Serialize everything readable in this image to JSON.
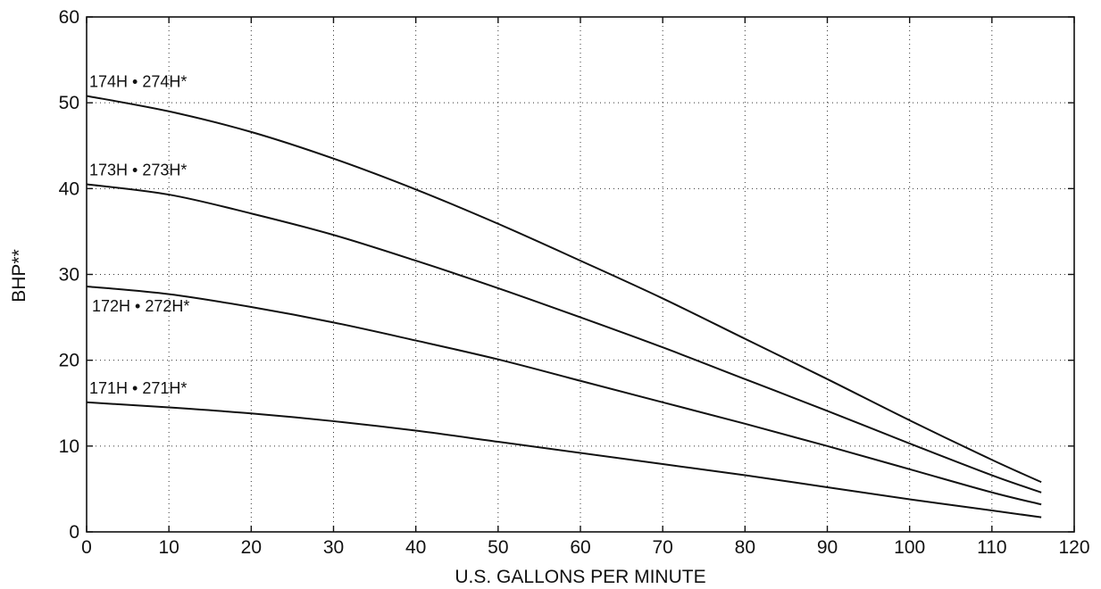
{
  "chart_data": {
    "type": "line",
    "xlabel": "U.S. GALLONS PER MINUTE",
    "ylabel": "BHP**",
    "xlim": [
      0,
      120
    ],
    "ylim": [
      0,
      60
    ],
    "x_ticks": [
      "0",
      "10",
      "20",
      "30",
      "40",
      "50",
      "60",
      "70",
      "80",
      "90",
      "100",
      "110",
      "120"
    ],
    "y_ticks": [
      "0",
      "10",
      "20",
      "30",
      "40",
      "50",
      "60"
    ],
    "grid": true,
    "series": [
      {
        "name": "174H • 274H*",
        "x": [
          0,
          10,
          20,
          30,
          40,
          50,
          60,
          70,
          80,
          90,
          100,
          110,
          116
        ],
        "y": [
          50.8,
          49.0,
          46.6,
          43.5,
          39.9,
          35.9,
          31.6,
          27.2,
          22.5,
          17.8,
          13.0,
          8.4,
          5.8
        ]
      },
      {
        "name": "173H • 273H*",
        "x": [
          0,
          10,
          20,
          30,
          40,
          50,
          60,
          70,
          80,
          90,
          100,
          110,
          116
        ],
        "y": [
          40.5,
          39.3,
          37.1,
          34.6,
          31.6,
          28.4,
          25.0,
          21.5,
          17.8,
          14.1,
          10.3,
          6.6,
          4.6
        ]
      },
      {
        "name": "172H • 272H*",
        "x": [
          0,
          10,
          20,
          30,
          40,
          50,
          60,
          70,
          80,
          90,
          100,
          110,
          116
        ],
        "y": [
          28.6,
          27.7,
          26.2,
          24.4,
          22.3,
          20.1,
          17.6,
          15.1,
          12.6,
          10.0,
          7.3,
          4.6,
          3.2
        ]
      },
      {
        "name": "171H • 271H*",
        "x": [
          0,
          10,
          20,
          30,
          40,
          50,
          60,
          70,
          80,
          90,
          100,
          110,
          116
        ],
        "y": [
          15.1,
          14.5,
          13.8,
          12.9,
          11.8,
          10.5,
          9.2,
          7.9,
          6.6,
          5.2,
          3.8,
          2.5,
          1.7
        ]
      }
    ]
  }
}
